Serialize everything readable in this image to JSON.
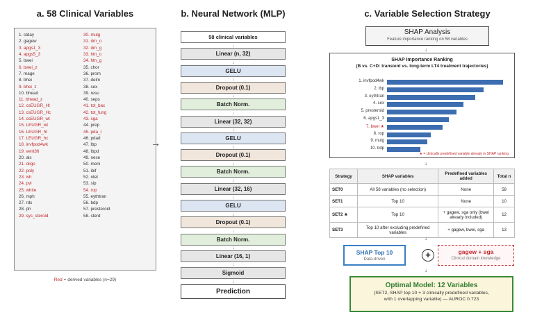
{
  "panel_a": {
    "title": "a. 58 Clinical Variables",
    "col1": [
      {
        "text": "1. stday",
        "red": false
      },
      {
        "text": "2. gagew",
        "red": false
      },
      {
        "text": "3. apgs1_3",
        "red": true
      },
      {
        "text": "4. apgs5_3",
        "red": true
      },
      {
        "text": "5. bwei",
        "red": false
      },
      {
        "text": "6. bwei_z",
        "red": true
      },
      {
        "text": "7. mage",
        "red": false
      },
      {
        "text": "8. bhei",
        "red": false
      },
      {
        "text": "9. bhei_z",
        "red": true
      },
      {
        "text": "10. bhead",
        "red": false
      },
      {
        "text": "11. bhead_z",
        "red": true
      },
      {
        "text": "12. csEUGR_Ht",
        "red": true
      },
      {
        "text": "13. csEUGR_Hc",
        "red": true
      },
      {
        "text": "14. csEUGR_wt",
        "red": true
      },
      {
        "text": "15. LEUGR_wt",
        "red": true
      },
      {
        "text": "16. LEUGR_ht",
        "red": true
      },
      {
        "text": "17. LEUGR_hc",
        "red": true
      },
      {
        "text": "18. invfpod4wk",
        "red": true
      },
      {
        "text": "19. vent36",
        "red": true
      },
      {
        "text": "20. als",
        "red": false
      },
      {
        "text": "21. oligo",
        "red": true
      },
      {
        "text": "22. poly",
        "red": true
      },
      {
        "text": "23. ivh",
        "red": true
      },
      {
        "text": "24. pvl",
        "red": true
      },
      {
        "text": "25. white",
        "red": true
      },
      {
        "text": "26. mph",
        "red": false
      },
      {
        "text": "27. rds",
        "red": false
      },
      {
        "text": "28. ph",
        "red": false
      },
      {
        "text": "29. sys_steroid",
        "red": true
      }
    ],
    "col2": [
      {
        "text": "30. mulg",
        "red": true
      },
      {
        "text": "31. dm_o",
        "red": true
      },
      {
        "text": "32. dm_g",
        "red": true
      },
      {
        "text": "33. htn_o",
        "red": true
      },
      {
        "text": "34. htn_g",
        "red": true
      },
      {
        "text": "35. chor",
        "red": false
      },
      {
        "text": "36. prom",
        "red": false
      },
      {
        "text": "37. delm",
        "red": false
      },
      {
        "text": "38. sex",
        "red": false
      },
      {
        "text": "39. resu",
        "red": false
      },
      {
        "text": "40. seps",
        "red": false
      },
      {
        "text": "41. tot_bac",
        "red": true
      },
      {
        "text": "42. tot_fung",
        "red": true
      },
      {
        "text": "43. sga",
        "red": true
      },
      {
        "text": "44. prep",
        "red": false
      },
      {
        "text": "45. pda_l",
        "red": true
      },
      {
        "text": "46. pdad",
        "red": false
      },
      {
        "text": "47. lbp",
        "red": false
      },
      {
        "text": "48. lbpd",
        "red": false
      },
      {
        "text": "49. nese",
        "red": false
      },
      {
        "text": "50. meni",
        "red": false
      },
      {
        "text": "51. ibif",
        "red": false
      },
      {
        "text": "52. ntet",
        "red": false
      },
      {
        "text": "53. sip",
        "red": false
      },
      {
        "text": "54. rop",
        "red": true
      },
      {
        "text": "55. eythtran",
        "red": false
      },
      {
        "text": "56. bdp",
        "red": false
      },
      {
        "text": "57. presteroid",
        "red": false
      },
      {
        "text": "58. sterd",
        "red": false
      }
    ],
    "legend_red": "Red",
    "legend_rest": " = derived variables (n=29)"
  },
  "panel_b": {
    "title": "b. Neural Network (MLP)",
    "arrow_symbol": "↓",
    "side_arrow": "→",
    "layers": [
      {
        "label": "58 clinical variables",
        "kind": "white"
      },
      {
        "label": "Linear (n, 32)",
        "kind": "grey"
      },
      {
        "label": "GELU",
        "kind": "blue"
      },
      {
        "label": "Dropout (0.1)",
        "kind": "tan"
      },
      {
        "label": "Batch Norm.",
        "kind": "green"
      },
      {
        "label": "Linear (32, 32)",
        "kind": "grey"
      },
      {
        "label": "GELU",
        "kind": "blue"
      },
      {
        "label": "Dropout (0.1)",
        "kind": "tan"
      },
      {
        "label": "Batch Norm.",
        "kind": "green"
      },
      {
        "label": "Linear (32, 16)",
        "kind": "grey"
      },
      {
        "label": "GELU",
        "kind": "blue"
      },
      {
        "label": "Dropout (0.1)",
        "kind": "tan"
      },
      {
        "label": "Batch Norm.",
        "kind": "green"
      },
      {
        "label": "Linear (16, 1)",
        "kind": "grey"
      },
      {
        "label": "Sigmoid",
        "kind": "grey"
      },
      {
        "label": "Prediction",
        "kind": "prediction"
      }
    ]
  },
  "panel_c": {
    "title": "c. Variable Selection Strategy",
    "shap": {
      "title": "SHAP Analysis",
      "subtitle": "Feature importance ranking on 58 variables"
    },
    "ranking": {
      "title": "SHAP Importance Ranking",
      "subtitle": "(B vs. C+D: transient vs. long-term LT4 treatment trajectories)",
      "bar_color": "#3c6db0",
      "items": [
        {
          "label": "1. invfpod4wk",
          "value": 1.0,
          "red": false
        },
        {
          "label": "2. lbp",
          "value": 0.83,
          "red": false
        },
        {
          "label": "3. eythtran",
          "value": 0.76,
          "red": false
        },
        {
          "label": "4. sex",
          "value": 0.66,
          "red": false
        },
        {
          "label": "5. presteroid",
          "value": 0.6,
          "red": false
        },
        {
          "label": "6. apgs1_3",
          "value": 0.53,
          "red": false
        },
        {
          "label": "7. bwei ★",
          "value": 0.48,
          "red": true
        },
        {
          "label": "8. rop",
          "value": 0.38,
          "red": false
        },
        {
          "label": "9. mulg",
          "value": 0.35,
          "red": false
        },
        {
          "label": "10. bdp",
          "value": 0.29,
          "red": false
        }
      ],
      "note": "★ = clinically predefined variable already in SHAP ranking"
    },
    "table": {
      "headers": [
        "Strategy",
        "SHAP variables",
        "Predefined variables added",
        "Total n"
      ],
      "rows": [
        {
          "strategy": "SET0",
          "shap": "All 58 variables (no selection)",
          "predefined": "None",
          "total": "58"
        },
        {
          "strategy": "SET1",
          "shap": "Top 10",
          "predefined": "None",
          "total": "10"
        },
        {
          "strategy": "SET2 ★",
          "shap": "Top 10",
          "predefined": "+ gagew, sga only (bwei already included)",
          "total": "12"
        },
        {
          "strategy": "SET3",
          "shap": "Top 10 after excluding predefined variables",
          "predefined": "+ gagew, bwei, sga",
          "total": "13"
        }
      ]
    },
    "arrow_symbol": "↓",
    "top10": {
      "title": "SHAP Top 10",
      "subtitle": "Data-driven"
    },
    "plus": "+",
    "gagew": {
      "title": "gagew + sga",
      "subtitle": "Clinical domain knowledge"
    },
    "optimal": {
      "title": "Optimal Model: 12 Variables",
      "line1": "(SET2, SHAP top 10 + 3 clinically predefined variables,",
      "line2": "with 1 overlapping variable) — AUROC 0.723"
    }
  },
  "colors": {
    "derived_red": "#c0272d",
    "bar_blue": "#3c6db0",
    "top10_blue": "#3a7fc4",
    "optimal_green": "#3a8a3a"
  }
}
